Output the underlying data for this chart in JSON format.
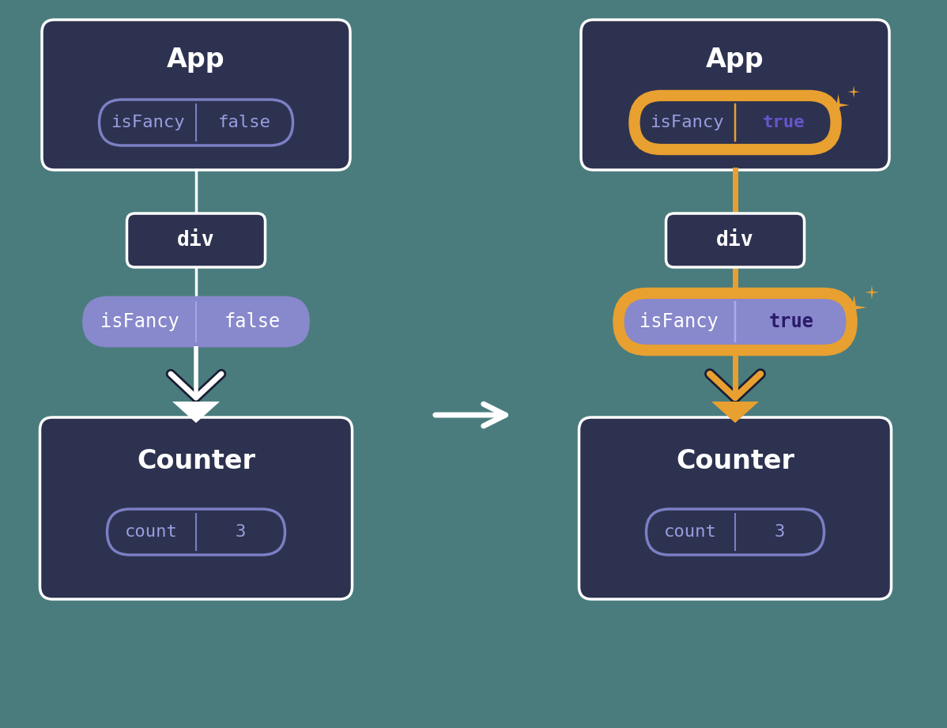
{
  "bg_color": "#4a7c7e",
  "panel_bg": "#2d3250",
  "panel_border": "#ffffff",
  "div_border": "#ffffff",
  "state_bubble_border_normal": "#7b7fc4",
  "state_bubble_border_highlight": "#e8a030",
  "prop_bubble_bg": "#8888cc",
  "count_bubble_border": "#7b7fc4",
  "text_white": "#ffffff",
  "text_light_purple": "#9a9de0",
  "text_purple_bold": "#6655cc",
  "arrow_normal_color": "#ffffff",
  "arrow_highlight_color": "#e8a030",
  "connector_normal": "#ffffff",
  "connector_highlight": "#e8a030",
  "sparkle_color": "#e8a030",
  "left_isfancy_value": "false",
  "right_isfancy_value": "true",
  "count_value": "3",
  "app_label": "App",
  "div_label": "div",
  "counter_label": "Counter",
  "isfancy_label": "isFancy",
  "count_label": "count"
}
